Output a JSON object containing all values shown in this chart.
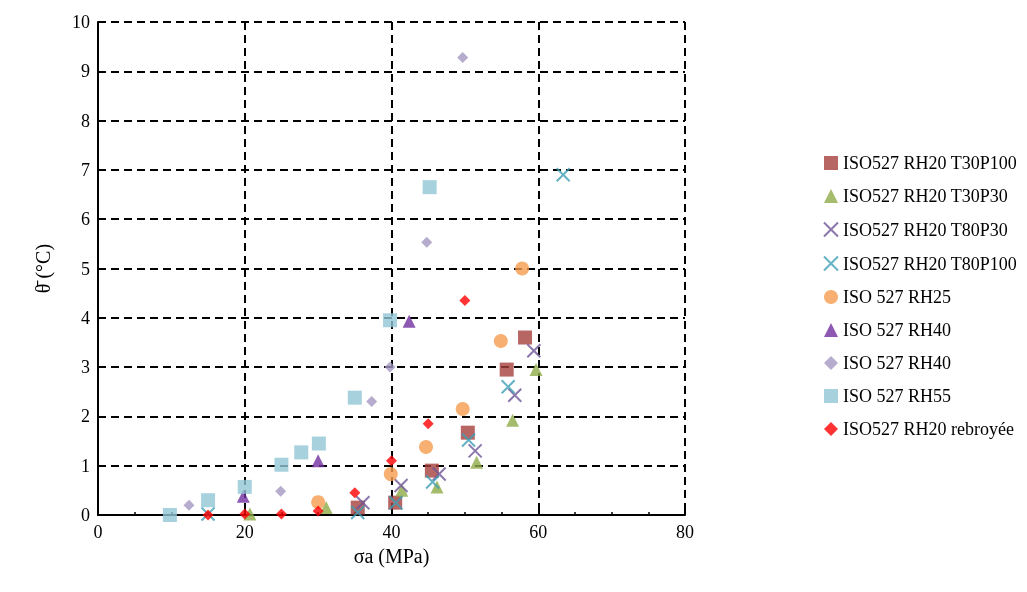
{
  "chart_data": {
    "type": "scatter",
    "xlabel": "σa (MPa)",
    "ylabel": "θ̄ (°C)",
    "xlim": [
      0,
      80
    ],
    "xticks": [
      0,
      20,
      40,
      60,
      80
    ],
    "ylim": [
      0,
      10
    ],
    "yticks": [
      0,
      1,
      2,
      3,
      4,
      5,
      6,
      7,
      8,
      9,
      10
    ],
    "grid": true,
    "legend": "right",
    "series": [
      {
        "name": "ISO527 RH20 T30P100",
        "color": "#a5403d",
        "marker": "square",
        "x": [
          35.4,
          40.5,
          45.5,
          50.4,
          55.7,
          58.2
        ],
        "values": [
          0.15,
          0.25,
          0.9,
          1.67,
          2.95,
          3.6
        ]
      },
      {
        "name": "ISO527 RH20 T30P30",
        "color": "#8eab47",
        "marker": "triangle",
        "x": [
          20.7,
          31.1,
          41.4,
          46.2,
          51.6,
          56.5,
          59.7
        ],
        "values": [
          0.02,
          0.15,
          0.5,
          0.57,
          1.07,
          1.92,
          2.95
        ]
      },
      {
        "name": "ISO527 RH20 T80P30",
        "color": "#6f5597",
        "marker": "cross",
        "x": [
          36.1,
          41.3,
          46.5,
          51.4,
          56.8,
          59.4
        ],
        "values": [
          0.25,
          0.6,
          0.83,
          1.3,
          2.43,
          3.33
        ]
      },
      {
        "name": "ISO527 RH20 T80P100",
        "color": "#3d9fb5",
        "marker": "cross",
        "x": [
          15,
          35.4,
          40.6,
          45.6,
          50.5,
          55.9,
          63.4
        ],
        "values": [
          0.02,
          0.05,
          0.25,
          0.67,
          1.52,
          2.6,
          6.9
        ]
      },
      {
        "name": "ISO 527 RH25",
        "color": "#f59c4f",
        "marker": "circle",
        "x": [
          30,
          39.9,
          44.7,
          49.7,
          54.9,
          57.8
        ],
        "values": [
          0.26,
          0.83,
          1.38,
          2.15,
          3.53,
          5.0
        ]
      },
      {
        "name": "ISO 527 RH40",
        "color": "#7030a0",
        "marker": "triangle",
        "x": [
          19.8,
          30,
          42.4
        ],
        "values": [
          0.38,
          1.1,
          3.93
        ]
      },
      {
        "name": "ISO 527 RH40",
        "color": "#a497c0",
        "marker": "diamond",
        "x": [
          12.4,
          24.9,
          37.3,
          39.8,
          44.8,
          49.7
        ],
        "values": [
          0.2,
          0.48,
          2.3,
          3.0,
          5.53,
          9.28
        ]
      },
      {
        "name": "ISO 527 RH55",
        "color": "#92c5d6",
        "marker": "square",
        "x": [
          9.8,
          15,
          20,
          25,
          27.7,
          30.1,
          35,
          39.8,
          45.2
        ],
        "values": [
          0,
          0.3,
          0.57,
          1.02,
          1.27,
          1.45,
          2.38,
          3.95,
          6.65
        ]
      },
      {
        "name": "ISO527 RH20 rebroyée",
        "color": "#ff0000",
        "marker": "diamond",
        "x": [
          15,
          20,
          25,
          30,
          35,
          40,
          45,
          50
        ],
        "values": [
          0,
          0.02,
          0.02,
          0.08,
          0.45,
          1.1,
          1.85,
          4.35
        ]
      }
    ]
  }
}
